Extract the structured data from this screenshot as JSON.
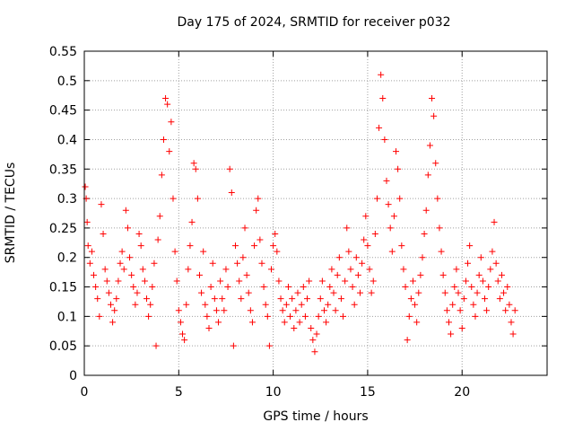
{
  "chart_data": {
    "type": "scatter",
    "title": "Day 175 of 2024, SRMTID for receiver p032",
    "xlabel": "GPS time / hours",
    "ylabel": "SRMTID / TECUs",
    "xlim": [
      0,
      24.5
    ],
    "ylim": [
      0,
      0.55
    ],
    "xticks": [
      "0",
      "5",
      "10",
      "15",
      "20"
    ],
    "yticks": [
      "0",
      "0.05",
      "0.1",
      "0.15",
      "0.2",
      "0.25",
      "0.3",
      "0.35",
      "0.4",
      "0.45",
      "0.5",
      "0.55"
    ],
    "grid": true,
    "marker": "+",
    "color": "#ff0000",
    "series": [
      {
        "name": "SRMTID",
        "points": [
          [
            0.05,
            0.32
          ],
          [
            0.1,
            0.3
          ],
          [
            0.15,
            0.26
          ],
          [
            0.2,
            0.22
          ],
          [
            0.3,
            0.19
          ],
          [
            0.4,
            0.21
          ],
          [
            0.5,
            0.17
          ],
          [
            0.6,
            0.15
          ],
          [
            0.7,
            0.13
          ],
          [
            0.8,
            0.1
          ],
          [
            0.9,
            0.29
          ],
          [
            1.0,
            0.24
          ],
          [
            1.1,
            0.18
          ],
          [
            1.2,
            0.16
          ],
          [
            1.3,
            0.14
          ],
          [
            1.4,
            0.12
          ],
          [
            1.5,
            0.09
          ],
          [
            1.6,
            0.11
          ],
          [
            1.7,
            0.13
          ],
          [
            1.8,
            0.16
          ],
          [
            1.9,
            0.19
          ],
          [
            2.0,
            0.21
          ],
          [
            2.1,
            0.18
          ],
          [
            2.2,
            0.28
          ],
          [
            2.3,
            0.25
          ],
          [
            2.4,
            0.2
          ],
          [
            2.5,
            0.17
          ],
          [
            2.6,
            0.15
          ],
          [
            2.7,
            0.12
          ],
          [
            2.8,
            0.14
          ],
          [
            2.9,
            0.24
          ],
          [
            3.0,
            0.22
          ],
          [
            3.1,
            0.18
          ],
          [
            3.2,
            0.16
          ],
          [
            3.3,
            0.13
          ],
          [
            3.4,
            0.1
          ],
          [
            3.5,
            0.12
          ],
          [
            3.6,
            0.15
          ],
          [
            3.7,
            0.19
          ],
          [
            3.8,
            0.05
          ],
          [
            3.9,
            0.23
          ],
          [
            4.0,
            0.27
          ],
          [
            4.1,
            0.34
          ],
          [
            4.2,
            0.4
          ],
          [
            4.3,
            0.47
          ],
          [
            4.4,
            0.46
          ],
          [
            4.5,
            0.38
          ],
          [
            4.6,
            0.43
          ],
          [
            4.7,
            0.3
          ],
          [
            4.8,
            0.21
          ],
          [
            4.9,
            0.16
          ],
          [
            5.0,
            0.11
          ],
          [
            5.1,
            0.09
          ],
          [
            5.2,
            0.07
          ],
          [
            5.3,
            0.06
          ],
          [
            5.4,
            0.12
          ],
          [
            5.5,
            0.18
          ],
          [
            5.6,
            0.22
          ],
          [
            5.7,
            0.26
          ],
          [
            5.8,
            0.36
          ],
          [
            5.9,
            0.35
          ],
          [
            6.0,
            0.3
          ],
          [
            6.1,
            0.17
          ],
          [
            6.2,
            0.14
          ],
          [
            6.3,
            0.21
          ],
          [
            6.4,
            0.12
          ],
          [
            6.5,
            0.1
          ],
          [
            6.6,
            0.08
          ],
          [
            6.7,
            0.15
          ],
          [
            6.8,
            0.19
          ],
          [
            6.9,
            0.13
          ],
          [
            7.0,
            0.11
          ],
          [
            7.1,
            0.09
          ],
          [
            7.2,
            0.16
          ],
          [
            7.3,
            0.13
          ],
          [
            7.4,
            0.11
          ],
          [
            7.5,
            0.18
          ],
          [
            7.6,
            0.15
          ],
          [
            7.7,
            0.35
          ],
          [
            7.8,
            0.31
          ],
          [
            7.9,
            0.05
          ],
          [
            8.0,
            0.22
          ],
          [
            8.1,
            0.19
          ],
          [
            8.2,
            0.16
          ],
          [
            8.3,
            0.13
          ],
          [
            8.4,
            0.2
          ],
          [
            8.5,
            0.25
          ],
          [
            8.6,
            0.17
          ],
          [
            8.7,
            0.14
          ],
          [
            8.8,
            0.11
          ],
          [
            8.9,
            0.09
          ],
          [
            9.0,
            0.22
          ],
          [
            9.1,
            0.28
          ],
          [
            9.2,
            0.3
          ],
          [
            9.3,
            0.23
          ],
          [
            9.4,
            0.19
          ],
          [
            9.5,
            0.15
          ],
          [
            9.6,
            0.12
          ],
          [
            9.7,
            0.1
          ],
          [
            9.8,
            0.05
          ],
          [
            9.9,
            0.18
          ],
          [
            10.0,
            0.22
          ],
          [
            10.1,
            0.24
          ],
          [
            10.2,
            0.21
          ],
          [
            10.3,
            0.16
          ],
          [
            10.4,
            0.13
          ],
          [
            10.5,
            0.11
          ],
          [
            10.6,
            0.09
          ],
          [
            10.7,
            0.12
          ],
          [
            10.8,
            0.15
          ],
          [
            10.9,
            0.1
          ],
          [
            11.0,
            0.13
          ],
          [
            11.1,
            0.08
          ],
          [
            11.2,
            0.11
          ],
          [
            11.3,
            0.14
          ],
          [
            11.4,
            0.09
          ],
          [
            11.5,
            0.12
          ],
          [
            11.6,
            0.15
          ],
          [
            11.7,
            0.1
          ],
          [
            11.8,
            0.13
          ],
          [
            11.9,
            0.16
          ],
          [
            12.0,
            0.08
          ],
          [
            12.1,
            0.06
          ],
          [
            12.2,
            0.04
          ],
          [
            12.3,
            0.07
          ],
          [
            12.4,
            0.1
          ],
          [
            12.5,
            0.13
          ],
          [
            12.6,
            0.16
          ],
          [
            12.7,
            0.11
          ],
          [
            12.8,
            0.09
          ],
          [
            12.9,
            0.12
          ],
          [
            13.0,
            0.15
          ],
          [
            13.1,
            0.18
          ],
          [
            13.2,
            0.14
          ],
          [
            13.3,
            0.11
          ],
          [
            13.4,
            0.17
          ],
          [
            13.5,
            0.2
          ],
          [
            13.6,
            0.13
          ],
          [
            13.7,
            0.1
          ],
          [
            13.8,
            0.16
          ],
          [
            13.9,
            0.25
          ],
          [
            14.0,
            0.21
          ],
          [
            14.1,
            0.18
          ],
          [
            14.2,
            0.15
          ],
          [
            14.3,
            0.12
          ],
          [
            14.4,
            0.2
          ],
          [
            14.5,
            0.17
          ],
          [
            14.6,
            0.14
          ],
          [
            14.7,
            0.19
          ],
          [
            14.8,
            0.23
          ],
          [
            14.9,
            0.27
          ],
          [
            15.0,
            0.22
          ],
          [
            15.1,
            0.18
          ],
          [
            15.2,
            0.14
          ],
          [
            15.3,
            0.16
          ],
          [
            15.4,
            0.24
          ],
          [
            15.5,
            0.3
          ],
          [
            15.6,
            0.42
          ],
          [
            15.7,
            0.51
          ],
          [
            15.8,
            0.47
          ],
          [
            15.9,
            0.4
          ],
          [
            16.0,
            0.33
          ],
          [
            16.1,
            0.29
          ],
          [
            16.2,
            0.25
          ],
          [
            16.3,
            0.21
          ],
          [
            16.4,
            0.27
          ],
          [
            16.5,
            0.38
          ],
          [
            16.6,
            0.35
          ],
          [
            16.7,
            0.3
          ],
          [
            16.8,
            0.22
          ],
          [
            16.9,
            0.18
          ],
          [
            17.0,
            0.15
          ],
          [
            17.1,
            0.06
          ],
          [
            17.2,
            0.1
          ],
          [
            17.3,
            0.13
          ],
          [
            17.4,
            0.16
          ],
          [
            17.5,
            0.12
          ],
          [
            17.6,
            0.09
          ],
          [
            17.7,
            0.14
          ],
          [
            17.8,
            0.17
          ],
          [
            17.9,
            0.2
          ],
          [
            18.0,
            0.24
          ],
          [
            18.1,
            0.28
          ],
          [
            18.2,
            0.34
          ],
          [
            18.3,
            0.39
          ],
          [
            18.4,
            0.47
          ],
          [
            18.5,
            0.44
          ],
          [
            18.6,
            0.36
          ],
          [
            18.7,
            0.3
          ],
          [
            18.8,
            0.25
          ],
          [
            18.9,
            0.21
          ],
          [
            19.0,
            0.17
          ],
          [
            19.1,
            0.14
          ],
          [
            19.2,
            0.11
          ],
          [
            19.3,
            0.09
          ],
          [
            19.4,
            0.07
          ],
          [
            19.5,
            0.12
          ],
          [
            19.6,
            0.15
          ],
          [
            19.7,
            0.18
          ],
          [
            19.8,
            0.14
          ],
          [
            19.9,
            0.11
          ],
          [
            20.0,
            0.08
          ],
          [
            20.1,
            0.13
          ],
          [
            20.2,
            0.16
          ],
          [
            20.3,
            0.19
          ],
          [
            20.4,
            0.22
          ],
          [
            20.5,
            0.15
          ],
          [
            20.6,
            0.12
          ],
          [
            20.7,
            0.1
          ],
          [
            20.8,
            0.14
          ],
          [
            20.9,
            0.17
          ],
          [
            21.0,
            0.2
          ],
          [
            21.1,
            0.16
          ],
          [
            21.2,
            0.13
          ],
          [
            21.3,
            0.11
          ],
          [
            21.4,
            0.15
          ],
          [
            21.5,
            0.18
          ],
          [
            21.6,
            0.21
          ],
          [
            21.7,
            0.26
          ],
          [
            21.8,
            0.19
          ],
          [
            21.9,
            0.16
          ],
          [
            22.0,
            0.13
          ],
          [
            22.1,
            0.17
          ],
          [
            22.2,
            0.14
          ],
          [
            22.3,
            0.11
          ],
          [
            22.4,
            0.15
          ],
          [
            22.5,
            0.12
          ],
          [
            22.6,
            0.09
          ],
          [
            22.7,
            0.07
          ],
          [
            22.8,
            0.11
          ]
        ]
      }
    ]
  }
}
